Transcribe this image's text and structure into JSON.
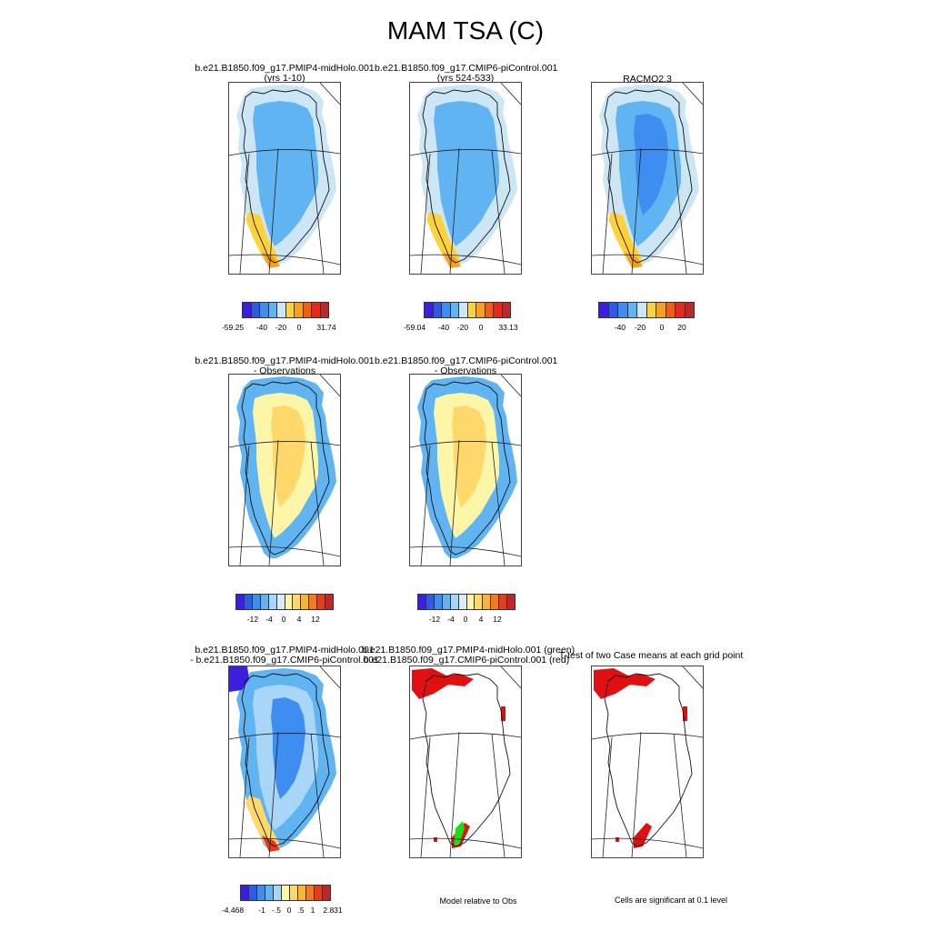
{
  "title": "MAM TSA (C)",
  "row1": {
    "panels": [
      {
        "title1": "b.e21.B1850.f09_g17.PMIP4-midHolo.001",
        "title2": "(yrs 1-10)"
      },
      {
        "title1": "b.e21.B1850.f09_g17.CMIP6-piControl.001",
        "title2": "(yrs 524-533)"
      },
      {
        "title1": "RACMO2.3",
        "title2": ""
      }
    ],
    "colorbars": [
      {
        "labels": [
          "-59.25",
          "-40",
          "-20",
          "0",
          "31.74"
        ]
      },
      {
        "labels": [
          "-59.04",
          "-40",
          "-20",
          "0",
          "33.13"
        ]
      },
      {
        "labels": [
          "-40",
          "-20",
          "0",
          "20"
        ]
      }
    ]
  },
  "row2": {
    "panels": [
      {
        "title1": "b.e21.B1850.f09_g17.PMIP4-midHolo.001",
        "title2": "- Observations"
      },
      {
        "title1": "b.e21.B1850.f09_g17.CMIP6-piControl.001",
        "title2": "- Observations"
      }
    ],
    "colorbars": [
      {
        "labels": [
          "-12",
          "-4",
          "0",
          "4",
          "12"
        ]
      },
      {
        "labels": [
          "-12",
          "-4",
          "0",
          "4",
          "12"
        ]
      }
    ]
  },
  "row3": {
    "panels": [
      {
        "title1": "b.e21.B1850.f09_g17.PMIP4-midHolo.001",
        "title2": "- b.e21.B1850.f09_g17.CMIP6-piControl.001"
      },
      {
        "title1": "b.e21.B1850.f09_g17.PMIP4-midHolo.001 (green)",
        "title2": "b.e21.B1850.f09_g17.CMIP6-piControl.001 (red)"
      },
      {
        "title1": "T-test of two Case means at each grid point",
        "title2": ""
      }
    ],
    "colorbar": {
      "labels": [
        "-4.468",
        "-1",
        "-.5",
        "0",
        ".5",
        "1",
        "2.831"
      ]
    },
    "notes": [
      "Model relative to Obs",
      "Cells are significant at 0.1 level"
    ]
  },
  "colors": {
    "abs_scale": [
      "#3a1fe0",
      "#2f5ae8",
      "#3d8ef0",
      "#60b4f2",
      "#cde6f6",
      "#ffd23a",
      "#f5a020",
      "#ee6010",
      "#e8281a",
      "#c02828"
    ],
    "diff_scale": [
      "#3a1fe0",
      "#2f5ae8",
      "#3d8ef0",
      "#60b4f2",
      "#a9d6f7",
      "#fdf6a8",
      "#fed86a",
      "#f8b432",
      "#f47a1e",
      "#ea3a1e",
      "#c02828"
    ],
    "bias_scale": [
      "#3a1fe0",
      "#2f5ae8",
      "#3d8ef0",
      "#60b4f2",
      "#a9d6f7",
      "#d9ecf8",
      "#fdf6a8",
      "#fed86a",
      "#f8b432",
      "#f47a1e",
      "#ea3a1e",
      "#c02828"
    ],
    "significant_red": "#e01010",
    "significant_green": "#18e010"
  },
  "chart_data": [
    {
      "type": "heatmap",
      "title": "b.e21.B1850.f09_g17.PMIP4-midHolo.001 (yrs 1-10)",
      "colorbar_min": -59.25,
      "colorbar_max": 31.74
    },
    {
      "type": "heatmap",
      "title": "b.e21.B1850.f09_g17.CMIP6-piControl.001 (yrs 524-533)",
      "colorbar_min": -59.04,
      "colorbar_max": 33.13
    },
    {
      "type": "heatmap",
      "title": "RACMO2.3",
      "colorbar_ticks": [
        -40,
        -20,
        0,
        20
      ]
    },
    {
      "type": "heatmap",
      "title": "b.e21.B1850.f09_g17.PMIP4-midHolo.001 - Observations",
      "colorbar_ticks": [
        -12,
        -4,
        0,
        4,
        12
      ]
    },
    {
      "type": "heatmap",
      "title": "b.e21.B1850.f09_g17.CMIP6-piControl.001 - Observations",
      "colorbar_ticks": [
        -12,
        -4,
        0,
        4,
        12
      ]
    },
    {
      "type": "heatmap",
      "title": "b.e21.B1850.f09_g17.PMIP4-midHolo.001 - b.e21.B1850.f09_g17.CMIP6-piControl.001",
      "colorbar_min": -4.468,
      "colorbar_max": 2.831
    },
    {
      "type": "heatmap",
      "title": "b.e21.B1850.f09_g17.PMIP4-midHolo.001 (green) b.e21.B1850.f09_g17.CMIP6-piControl.001 (red)"
    },
    {
      "type": "heatmap",
      "title": "T-test of two Case means at each grid point"
    }
  ]
}
